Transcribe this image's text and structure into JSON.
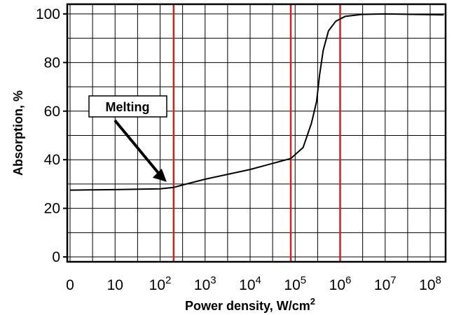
{
  "chart_data": {
    "type": "line",
    "title": "",
    "xlabel": "Power density, W/cm",
    "xlabel_superscript": "2",
    "ylabel": "Absorption, %",
    "x_scale": "log",
    "x_ticks": [
      {
        "base": "0",
        "exp": ""
      },
      {
        "base": "10",
        "exp": ""
      },
      {
        "base": "10",
        "exp": "2"
      },
      {
        "base": "10",
        "exp": "3"
      },
      {
        "base": "10",
        "exp": "4"
      },
      {
        "base": "10",
        "exp": "5"
      },
      {
        "base": "10",
        "exp": "6"
      },
      {
        "base": "10",
        "exp": "7"
      },
      {
        "base": "10",
        "exp": "8"
      }
    ],
    "y_ticks": [
      "0",
      "20",
      "40",
      "60",
      "80",
      "100"
    ],
    "ylim": [
      -2,
      104
    ],
    "grid": true,
    "line_color": "#000000",
    "marker_line_color": "#cc2222",
    "markers_x": [
      200,
      80000,
      1000000
    ],
    "series": [
      {
        "x": [
          1,
          3,
          10,
          100,
          200,
          300,
          1000,
          10000,
          80000,
          150000,
          230000,
          300000,
          350000,
          420000,
          550000,
          800000,
          1300000,
          3000000,
          10000000,
          50000000,
          200000000
        ],
        "y": [
          27.5,
          27.6,
          27.7,
          28,
          28.6,
          29.5,
          32,
          36,
          40.5,
          45,
          55,
          64,
          75,
          85,
          93,
          97,
          99,
          99.8,
          100,
          99.8,
          99.6
        ]
      }
    ],
    "annotations": [
      {
        "text": "Melting",
        "points_to_x": 200,
        "points_to_y": 28.6
      }
    ]
  }
}
